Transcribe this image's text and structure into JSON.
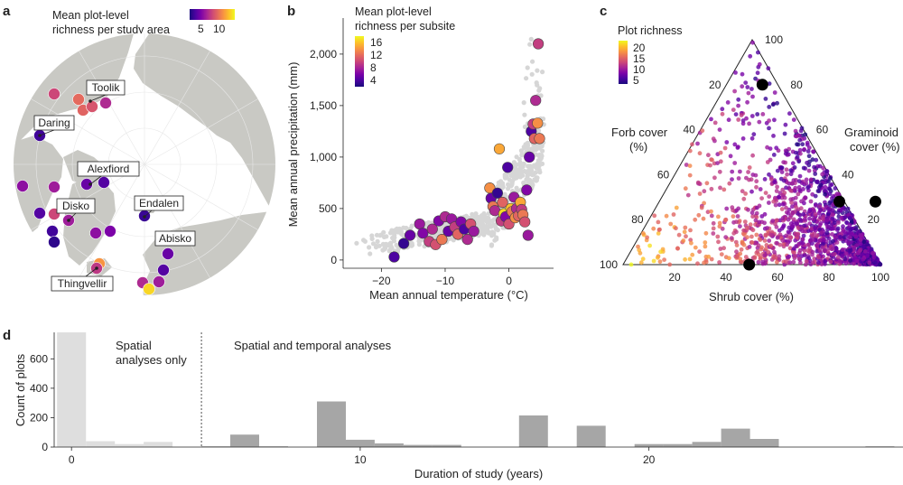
{
  "panels": {
    "a": {
      "letter": "a",
      "legend_title_line1": "Mean plot-level",
      "legend_title_line2": "richness per study area",
      "legend_ticks": [
        "5",
        "10"
      ],
      "sites": [
        "Toolik",
        "Daring",
        "Alexfiord",
        "Endalen",
        "Disko",
        "Abisko",
        "Thingvellir"
      ],
      "colors": {
        "ocean": "#ffffff",
        "land": "#c9c9c4",
        "border": "#e7e7e7"
      }
    },
    "b": {
      "letter": "b"
    },
    "c": {
      "letter": "c"
    },
    "d": {
      "letter": "d"
    }
  },
  "colormap": [
    "#1a0a7c",
    "#4a03a1",
    "#7c02a8",
    "#a72497",
    "#cc4778",
    "#e56b5d",
    "#f89441",
    "#fdc328",
    "#f0f921"
  ],
  "chart_data": [
    {
      "id": "b",
      "type": "scatter",
      "title": "",
      "legend_title_line1": "Mean plot-level",
      "legend_title_line2": "richness per subsite",
      "legend_ticks": [
        "16",
        "12",
        "8",
        "4"
      ],
      "xlabel": "Mean annual temperature (°C)",
      "ylabel": "Mean annual precipitation (mm)",
      "xlim": [
        -26,
        7
      ],
      "ylim": [
        -80,
        2350
      ],
      "xticks": [
        -20,
        -10,
        0
      ],
      "xtick_labels": [
        "−20",
        "−10",
        "0"
      ],
      "yticks": [
        0,
        500,
        1000,
        1500,
        2000
      ],
      "ytick_labels": [
        "0",
        "500",
        "1,000",
        "1,500",
        "2,000"
      ],
      "subsites": [
        {
          "t": -18,
          "p": 30,
          "r": 4
        },
        {
          "t": -16.5,
          "p": 160,
          "r": 3
        },
        {
          "t": -15.5,
          "p": 240,
          "r": 5
        },
        {
          "t": -14,
          "p": 350,
          "r": 7
        },
        {
          "t": -13.5,
          "p": 260,
          "r": 6
        },
        {
          "t": -12.5,
          "p": 180,
          "r": 9
        },
        {
          "t": -12,
          "p": 300,
          "r": 8
        },
        {
          "t": -11.5,
          "p": 150,
          "r": 10
        },
        {
          "t": -11,
          "p": 380,
          "r": 6
        },
        {
          "t": -10.5,
          "p": 200,
          "r": 12
        },
        {
          "t": -10,
          "p": 420,
          "r": 8
        },
        {
          "t": -9.5,
          "p": 280,
          "r": 5
        },
        {
          "t": -9,
          "p": 400,
          "r": 7
        },
        {
          "t": -8.5,
          "p": 320,
          "r": 9
        },
        {
          "t": -8,
          "p": 250,
          "r": 11
        },
        {
          "t": -7.5,
          "p": 370,
          "r": 6
        },
        {
          "t": -7,
          "p": 300,
          "r": 4
        },
        {
          "t": -6.5,
          "p": 200,
          "r": 8
        },
        {
          "t": -6,
          "p": 350,
          "r": 10
        },
        {
          "t": -5.5,
          "p": 280,
          "r": 7
        },
        {
          "t": -3,
          "p": 700,
          "r": 13
        },
        {
          "t": -2.8,
          "p": 600,
          "r": 5
        },
        {
          "t": -2.5,
          "p": 520,
          "r": 12
        },
        {
          "t": -2.2,
          "p": 480,
          "r": 8
        },
        {
          "t": -1.8,
          "p": 650,
          "r": 3
        },
        {
          "t": -1.5,
          "p": 1080,
          "r": 14
        },
        {
          "t": -1.2,
          "p": 380,
          "r": 9
        },
        {
          "t": -1,
          "p": 560,
          "r": 11
        },
        {
          "t": -0.8,
          "p": 450,
          "r": 16
        },
        {
          "t": -0.5,
          "p": 420,
          "r": 6
        },
        {
          "t": -0.2,
          "p": 900,
          "r": 4
        },
        {
          "t": 0,
          "p": 350,
          "r": 10
        },
        {
          "t": 0.3,
          "p": 500,
          "r": 15
        },
        {
          "t": 0.5,
          "p": 470,
          "r": 12
        },
        {
          "t": 0.8,
          "p": 610,
          "r": 7
        },
        {
          "t": 1,
          "p": 410,
          "r": 13
        },
        {
          "t": 1.2,
          "p": 500,
          "r": 8
        },
        {
          "t": 1.5,
          "p": 430,
          "r": 11
        },
        {
          "t": 1.8,
          "p": 560,
          "r": 14
        },
        {
          "t": 2,
          "p": 490,
          "r": 9
        },
        {
          "t": 2.2,
          "p": 440,
          "r": 12
        },
        {
          "t": 2.5,
          "p": 370,
          "r": 10
        },
        {
          "t": 2.8,
          "p": 680,
          "r": 6
        },
        {
          "t": 3,
          "p": 240,
          "r": 7
        },
        {
          "t": 3.2,
          "p": 1000,
          "r": 5
        },
        {
          "t": 3.5,
          "p": 1250,
          "r": 4
        },
        {
          "t": 3.8,
          "p": 1320,
          "r": 9
        },
        {
          "t": 4,
          "p": 1180,
          "r": 11
        },
        {
          "t": 4.2,
          "p": 1550,
          "r": 8
        },
        {
          "t": 4.5,
          "p": 1330,
          "r": 13
        },
        {
          "t": 4.8,
          "p": 1180,
          "r": 12
        },
        {
          "t": 4.6,
          "p": 2100,
          "r": 9
        }
      ]
    },
    {
      "id": "c",
      "type": "scatter",
      "title": "",
      "legend_title": "Plot richness",
      "legend_ticks": [
        "20",
        "15",
        "10",
        "5"
      ],
      "xlabel": "Shrub cover (%)",
      "left_label_line1": "Forb cover",
      "left_label_line2": "(%)",
      "right_label_line1": "Graminoid",
      "right_label_line2": "cover (%)",
      "bottom_ticks": [
        "20",
        "40",
        "60",
        "80",
        "100"
      ],
      "left_ticks": [
        "20",
        "40",
        "60",
        "80",
        "100"
      ],
      "right_ticks": [
        "100",
        "80",
        "60",
        "40",
        "20"
      ],
      "highlight_points_shrub_graminoid": [
        [
          14,
          80
        ],
        [
          49,
          0
        ],
        [
          70,
          28
        ],
        [
          84,
          28
        ]
      ]
    },
    {
      "id": "d",
      "type": "bar",
      "title": "",
      "xlabel": "Duration of study (years)",
      "ylabel": "Count of plots",
      "xlim": [
        -0.6,
        28.8
      ],
      "ylim": [
        0,
        780
      ],
      "xticks": [
        0,
        10,
        20
      ],
      "xtick_labels": [
        "0",
        "10",
        "20"
      ],
      "yticks": [
        0,
        200,
        400,
        600
      ],
      "ytick_labels": [
        "0",
        "200",
        "400",
        "600"
      ],
      "divider_x": 4.5,
      "region_labels": {
        "spatial_line1": "Spatial",
        "spatial_line2": "analyses only",
        "spatiotemporal": "Spatial and temporal analyses"
      },
      "bars": [
        {
          "x": 0,
          "value": 780,
          "group": "spatial"
        },
        {
          "x": 1,
          "value": 40,
          "group": "spatial"
        },
        {
          "x": 2,
          "value": 20,
          "group": "spatial"
        },
        {
          "x": 3,
          "value": 35,
          "group": "spatial"
        },
        {
          "x": 5,
          "value": 5,
          "group": "temporal"
        },
        {
          "x": 6,
          "value": 85,
          "group": "temporal"
        },
        {
          "x": 7,
          "value": 5,
          "group": "temporal"
        },
        {
          "x": 9,
          "value": 310,
          "group": "temporal"
        },
        {
          "x": 10,
          "value": 50,
          "group": "temporal"
        },
        {
          "x": 11,
          "value": 25,
          "group": "temporal"
        },
        {
          "x": 12,
          "value": 15,
          "group": "temporal"
        },
        {
          "x": 13,
          "value": 15,
          "group": "temporal"
        },
        {
          "x": 16,
          "value": 215,
          "group": "temporal"
        },
        {
          "x": 18,
          "value": 145,
          "group": "temporal"
        },
        {
          "x": 20,
          "value": 20,
          "group": "temporal"
        },
        {
          "x": 21,
          "value": 20,
          "group": "temporal"
        },
        {
          "x": 22,
          "value": 35,
          "group": "temporal"
        },
        {
          "x": 23,
          "value": 125,
          "group": "temporal"
        },
        {
          "x": 24,
          "value": 55,
          "group": "temporal"
        },
        {
          "x": 28,
          "value": 5,
          "group": "temporal"
        }
      ],
      "colors": {
        "spatial": "#dedede",
        "temporal": "#a6a6a6"
      }
    }
  ]
}
